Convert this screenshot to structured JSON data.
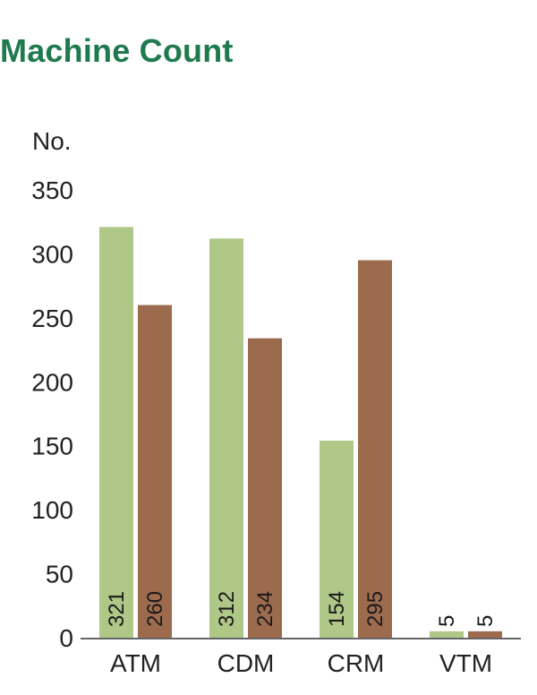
{
  "chart_data": {
    "type": "bar",
    "title": "Machine Count",
    "ylabel": "No.",
    "xlabel": "",
    "categories": [
      "ATM",
      "CDM",
      "CRM",
      "VTM"
    ],
    "series": [
      {
        "values": [
          321,
          312,
          154,
          5
        ],
        "color": "#afc887"
      },
      {
        "values": [
          260,
          234,
          295,
          5
        ],
        "color": "#9c6b4e"
      }
    ],
    "ylim": [
      0,
      350
    ],
    "yticks": [
      0,
      50,
      100,
      150,
      200,
      250,
      300,
      350
    ],
    "grid": false,
    "legend": "none",
    "data_labels": "inside-bottom-rotated"
  }
}
